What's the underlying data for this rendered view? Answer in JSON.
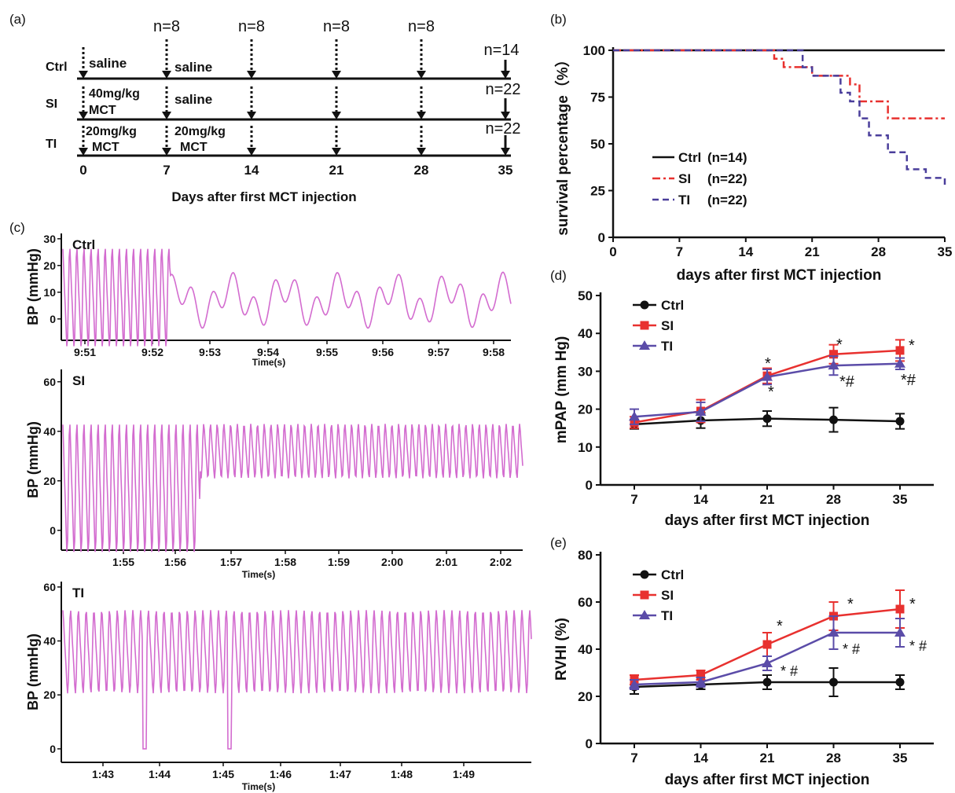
{
  "panels": {
    "a": {
      "letter": "(a)",
      "groups": [
        "Ctrl",
        "SI",
        "TI"
      ],
      "days": [
        "0",
        "7",
        "14",
        "21",
        "28",
        "35"
      ],
      "n_labels": [
        "n=8",
        "n=8",
        "n=8",
        "n=8"
      ],
      "end_n": [
        "n=14",
        "n=22",
        "n=22"
      ],
      "dose_labels": {
        "ctrl_d0": "saline",
        "ctrl_d7": "saline",
        "si_d0_line1": "40mg/kg",
        "si_d0_line2": "MCT",
        "si_d7": "saline",
        "ti_d0_line1": "20mg/kg",
        "ti_d0_line2": "MCT",
        "ti_d7_line1": "20mg/kg",
        "ti_d7_line2": "MCT"
      },
      "xlabel": "Days after first MCT injection"
    },
    "c": {
      "letter": "(c)",
      "traces": [
        {
          "name": "Ctrl",
          "ylabel": "BP (mmHg)",
          "yticks": [
            "30",
            "20",
            "10",
            "0"
          ],
          "xticks": [
            "9:51",
            "9:52",
            "9:53",
            "9:54",
            "9:55",
            "9:56",
            "9:57",
            "9:58"
          ],
          "xlabel": "Time(s)"
        },
        {
          "name": "SI",
          "ylabel": "BP (mmHg)",
          "yticks": [
            "60",
            "40",
            "20",
            "0"
          ],
          "xticks": [
            "1:55",
            "1:56",
            "1:57",
            "1:58",
            "1:59",
            "2:00",
            "2:01",
            "2:02"
          ],
          "xlabel": "Time(s)"
        },
        {
          "name": "TI",
          "ylabel": "BP (mmHg)",
          "yticks": [
            "60",
            "40",
            "20",
            "0"
          ],
          "xticks": [
            "1:43",
            "1:44",
            "1:45",
            "1:46",
            "1:47",
            "1:48",
            "1:49"
          ],
          "xlabel": "Time(s)"
        }
      ],
      "trace_color": "#d36ccf"
    }
  },
  "chart_data": [
    {
      "panel": "(b)",
      "type": "line",
      "step": true,
      "xlabel": "days after first MCT injection",
      "ylabel": "survival percentage（%）",
      "xlim": [
        0,
        35
      ],
      "ylim": [
        0,
        100
      ],
      "xticks": [
        0,
        7,
        14,
        21,
        28,
        35
      ],
      "yticks": [
        0,
        25,
        50,
        75,
        100
      ],
      "legend_position": "bottom-left",
      "series": [
        {
          "name": "Ctrl",
          "count_label": "(n=14)",
          "color": "#111111",
          "style": "solid",
          "x": [
            0,
            35
          ],
          "y": [
            100,
            100
          ]
        },
        {
          "name": "SI",
          "count_label": "(n=22)",
          "color": "#e8312f",
          "style": "dashdot",
          "x": [
            0,
            17,
            18,
            21,
            25,
            26,
            29,
            35
          ],
          "y": [
            100,
            95.5,
            91,
            86.4,
            81.8,
            72.7,
            63.6,
            63.6
          ]
        },
        {
          "name": "TI",
          "count_label": "(n=22)",
          "color": "#4a3e9b",
          "style": "dashed",
          "x": [
            0,
            20,
            21,
            24,
            25,
            26,
            27,
            29,
            31,
            33,
            35
          ],
          "y": [
            100,
            90.9,
            86.4,
            77.3,
            72.7,
            63.6,
            54.5,
            45.5,
            36.4,
            31.8,
            27.3
          ]
        }
      ]
    },
    {
      "panel": "(d)",
      "type": "line",
      "xlabel": "days after first MCT injection",
      "ylabel": "mPAP (mm Hg)",
      "categories": [
        "7",
        "14",
        "21",
        "28",
        "35"
      ],
      "ylim": [
        0,
        50
      ],
      "yticks": [
        0,
        10,
        20,
        30,
        40,
        50
      ],
      "legend_position": "top-left",
      "series": [
        {
          "name": "Ctrl",
          "color": "#111111",
          "marker": "circle",
          "values": [
            16,
            17,
            17.5,
            17.2,
            16.8
          ],
          "errors": [
            1.2,
            2,
            2,
            3.2,
            2
          ]
        },
        {
          "name": "SI",
          "color": "#e8312f",
          "marker": "square",
          "values": [
            16.5,
            19.5,
            28.8,
            34.5,
            35.5
          ],
          "errors": [
            1.5,
            3,
            2,
            2.5,
            2.8
          ]
        },
        {
          "name": "TI",
          "color": "#5b4ca8",
          "marker": "triangle",
          "values": [
            18,
            19.3,
            28.5,
            31.5,
            32
          ],
          "errors": [
            2,
            2.5,
            2,
            2.5,
            1.5
          ]
        }
      ],
      "annotations": [
        {
          "x": "21",
          "text": "*"
        },
        {
          "x": "21",
          "text": "*"
        },
        {
          "x": "28",
          "text": "*"
        },
        {
          "x": "28",
          "text": "*#"
        },
        {
          "x": "35",
          "text": "*"
        },
        {
          "x": "35",
          "text": "*#"
        }
      ]
    },
    {
      "panel": "(e)",
      "type": "line",
      "xlabel": "days after first MCT injection",
      "ylabel": "RVHI (%)",
      "categories": [
        "7",
        "14",
        "21",
        "28",
        "35"
      ],
      "ylim": [
        0,
        80
      ],
      "yticks": [
        0,
        20,
        40,
        60,
        80
      ],
      "legend_position": "top-left",
      "series": [
        {
          "name": "Ctrl",
          "color": "#111111",
          "marker": "circle",
          "values": [
            24,
            25,
            26,
            26,
            26
          ],
          "errors": [
            3,
            2,
            3,
            6,
            3
          ]
        },
        {
          "name": "SI",
          "color": "#e8312f",
          "marker": "square",
          "values": [
            27,
            29,
            42,
            54,
            57
          ],
          "errors": [
            2,
            2,
            5,
            6,
            8
          ]
        },
        {
          "name": "TI",
          "color": "#5b4ca8",
          "marker": "triangle",
          "values": [
            25,
            26,
            34,
            47,
            47
          ],
          "errors": [
            2,
            2,
            3,
            7,
            6
          ]
        }
      ],
      "annotations": [
        {
          "x": "21",
          "text": "*"
        },
        {
          "x": "21",
          "text": "* #"
        },
        {
          "x": "28",
          "text": "*"
        },
        {
          "x": "28",
          "text": "* #"
        },
        {
          "x": "35",
          "text": "*"
        },
        {
          "x": "35",
          "text": "* #"
        }
      ]
    }
  ]
}
